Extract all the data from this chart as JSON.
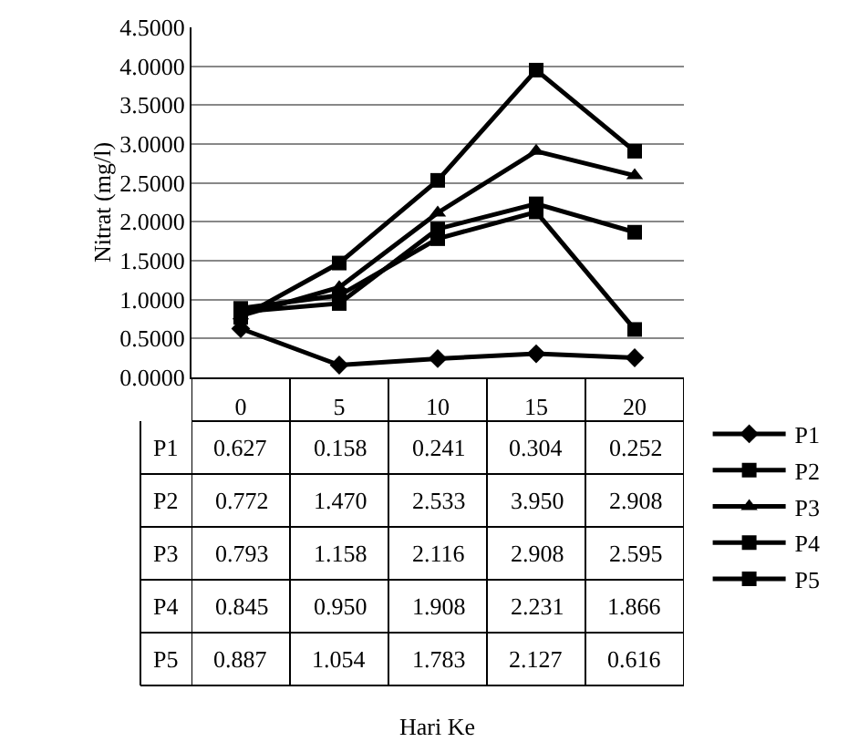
{
  "chart_data": {
    "type": "line",
    "ylabel": "Nitrat (mg/l)",
    "annotations": [
      "Hari Ke"
    ],
    "categories": [
      "0",
      "5",
      "10",
      "15",
      "20"
    ],
    "ylim": [
      0,
      4.5
    ],
    "yticks": [
      {
        "value": 0,
        "label": "0.0000"
      },
      {
        "value": 0.5,
        "label": "0.5000"
      },
      {
        "value": 1,
        "label": "1.0000"
      },
      {
        "value": 1.5,
        "label": "1.5000"
      },
      {
        "value": 2,
        "label": "2.0000"
      },
      {
        "value": 2.5,
        "label": "2.5000"
      },
      {
        "value": 3,
        "label": "3.0000"
      },
      {
        "value": 3.5,
        "label": "3.5000"
      },
      {
        "value": 4,
        "label": "4.0000"
      },
      {
        "value": 4.5,
        "label": "4.5000"
      }
    ],
    "grid": "y",
    "legend": "right",
    "line_style": "solid",
    "series": [
      {
        "name": "P1",
        "color": "#000000",
        "marker": "diamond",
        "values": [
          0.627,
          0.158,
          0.241,
          0.304,
          0.252
        ],
        "value_labels": [
          "0.627",
          "0.158",
          "0.241",
          "0.304",
          "0.252"
        ]
      },
      {
        "name": "P2",
        "color": "#000000",
        "marker": "square",
        "values": [
          0.772,
          1.47,
          2.533,
          3.95,
          2.908
        ],
        "value_labels": [
          "0.772",
          "1.470",
          "2.533",
          "3.950",
          "2.908"
        ]
      },
      {
        "name": "P3",
        "color": "#000000",
        "marker": "triangle",
        "values": [
          0.793,
          1.158,
          2.116,
          2.908,
          2.595
        ],
        "value_labels": [
          "0.793",
          "1.158",
          "2.116",
          "2.908",
          "2.595"
        ]
      },
      {
        "name": "P4",
        "color": "#000000",
        "marker": "square",
        "values": [
          0.845,
          0.95,
          1.908,
          2.231,
          1.866
        ],
        "value_labels": [
          "0.845",
          "0.950",
          "1.908",
          "2.231",
          "1.866"
        ]
      },
      {
        "name": "P5",
        "color": "#000000",
        "marker": "square",
        "values": [
          0.887,
          1.054,
          1.783,
          2.127,
          0.616
        ],
        "value_labels": [
          "0.887",
          "1.054",
          "1.783",
          "2.127",
          "0.616"
        ]
      }
    ]
  }
}
